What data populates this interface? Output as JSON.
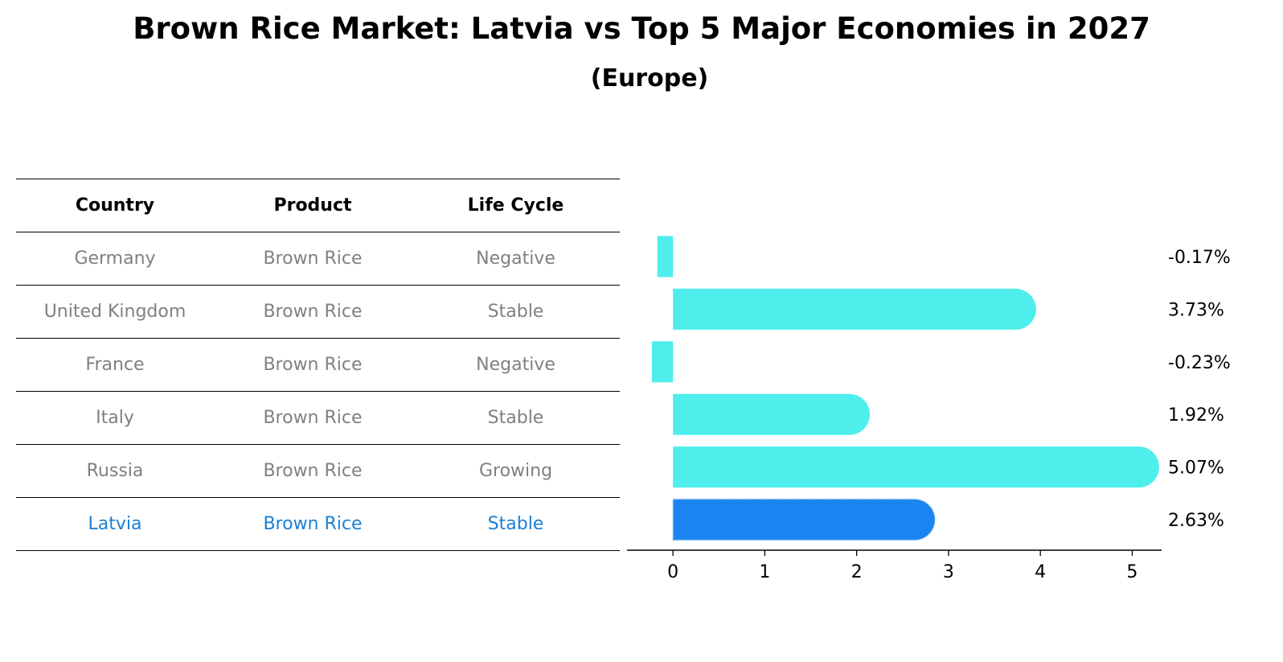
{
  "title": "Brown Rice Market: Latvia vs Top 5 Major Economies in 2027",
  "subtitle": "(Europe)",
  "table": {
    "headers": [
      "Country",
      "Product",
      "Life Cycle"
    ],
    "rows": [
      {
        "country": "Germany",
        "product": "Brown Rice",
        "life_cycle": "Negative"
      },
      {
        "country": "United Kingdom",
        "product": "Brown Rice",
        "life_cycle": "Stable"
      },
      {
        "country": "France",
        "product": "Brown Rice",
        "life_cycle": "Negative"
      },
      {
        "country": "Italy",
        "product": "Brown Rice",
        "life_cycle": "Stable"
      },
      {
        "country": "Russia",
        "product": "Brown Rice",
        "life_cycle": "Growing"
      },
      {
        "country": "Latvia",
        "product": "Brown Rice",
        "life_cycle": "Stable"
      }
    ],
    "highlight_row": 5,
    "text_color": "#808080",
    "highlight_color": "#1a7fd4"
  },
  "chart_data": {
    "type": "bar",
    "orientation": "horizontal",
    "categories": [
      "Germany",
      "United Kingdom",
      "France",
      "Italy",
      "Russia",
      "Latvia"
    ],
    "values": [
      -0.17,
      3.73,
      -0.23,
      1.92,
      5.07,
      2.63
    ],
    "value_labels": [
      "-0.17%",
      "3.73%",
      "-0.23%",
      "1.92%",
      "5.07%",
      "2.63%"
    ],
    "xlim": [
      -0.5,
      5.32
    ],
    "xticks": [
      0,
      1,
      2,
      3,
      4,
      5
    ],
    "bar_color": "#4eeeed",
    "highlight_color": "#1a85f1",
    "highlight_index": 5,
    "rounded_end": true,
    "grid": false
  }
}
